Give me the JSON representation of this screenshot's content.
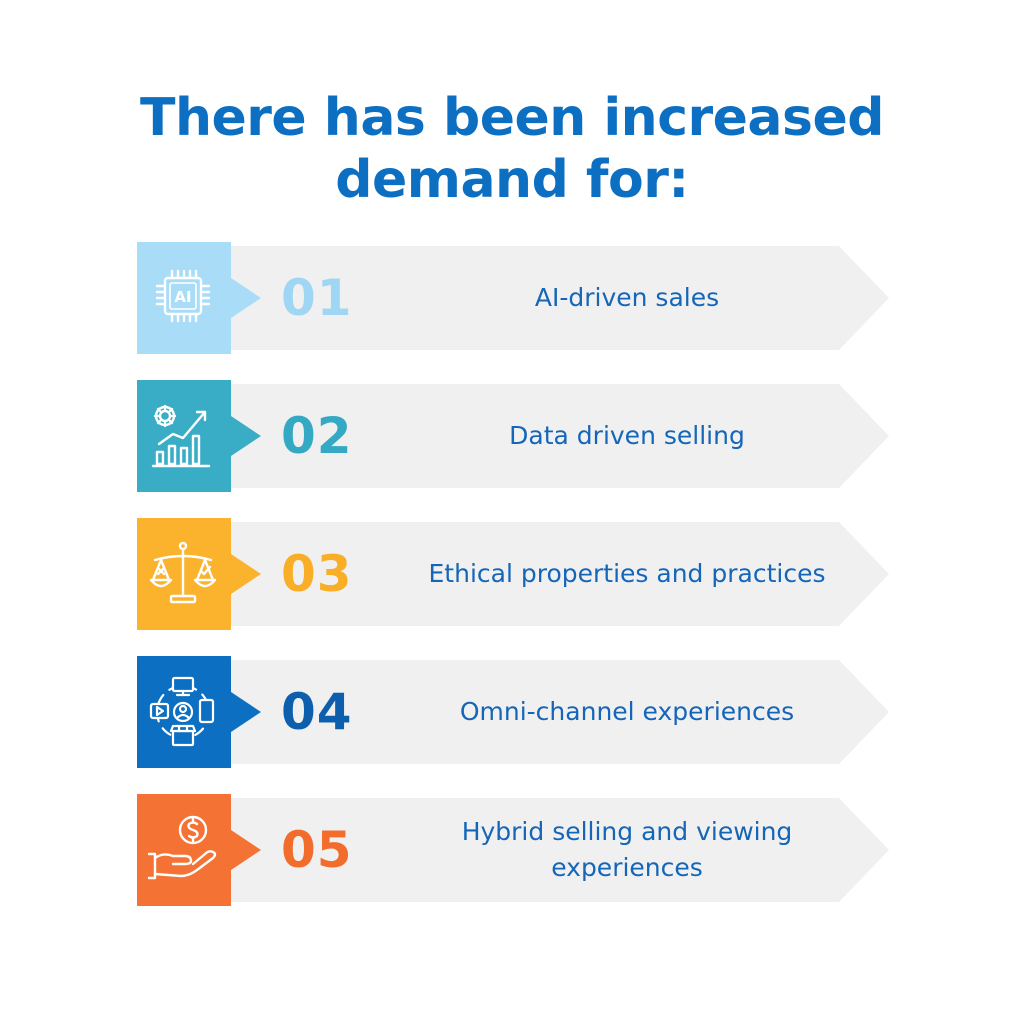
{
  "title": {
    "line1": "There has been increased",
    "line2": "demand for:"
  },
  "colors": {
    "title": "#0d6fc1",
    "label": "#1566b8",
    "arrow_bg": "#f0f0f0"
  },
  "items": [
    {
      "number": "01",
      "label": "AI-driven sales",
      "color": "#a9dcf7",
      "number_color": "#9fd6f4",
      "icon": "ai-chip-icon",
      "icon_text": "AI"
    },
    {
      "number": "02",
      "label": "Data driven selling",
      "color": "#3aadc6",
      "number_color": "#35a9c3",
      "icon": "gear-growth-chart-icon"
    },
    {
      "number": "03",
      "label": "Ethical properties and practices",
      "color": "#fbb32d",
      "number_color": "#f9ae27",
      "icon": "balance-scale-icon"
    },
    {
      "number": "04",
      "label": "Omni-channel experiences",
      "color": "#0d6fc1",
      "number_color": "#0d5fae",
      "icon": "omni-channel-icon"
    },
    {
      "number": "05",
      "label": "Hybrid selling and viewing experiences",
      "color": "#f47234",
      "number_color": "#f26c2c",
      "icon": "hand-coin-icon"
    }
  ]
}
